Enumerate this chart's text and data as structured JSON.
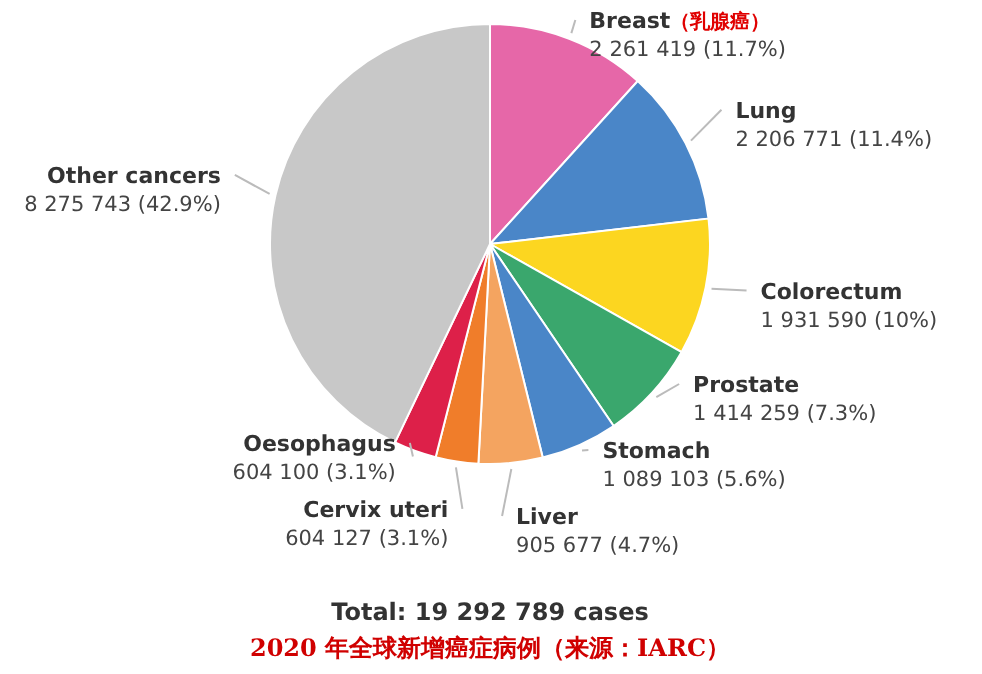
{
  "chart_data": {
    "type": "pie",
    "title": "Total: 19 292 789 cases",
    "subtitle": "2020 年全球新增癌症病例（来源：IARC）",
    "categories": [
      "Breast（乳腺癌）",
      "Lung",
      "Colorectum",
      "Prostate",
      "Stomach",
      "Liver",
      "Cervix uteri",
      "Oesophagus",
      "Other cancers"
    ],
    "values": [
      2261419,
      2206771,
      1931590,
      1414259,
      1089103,
      905677,
      604127,
      604100,
      8275743
    ],
    "value_labels": [
      "2 261 419 (11.7%)",
      "2 206 771 (11.4%)",
      "1 931 590 (10%)",
      "1 414 259 (7.3%)",
      "1 089 103 (5.6%)",
      "905 677 (4.7%)",
      "604 127 (3.1%)",
      "604 100 (3.1%)",
      "8 275 743 (42.9%)"
    ],
    "colors": [
      "#e667a8",
      "#4a86c8",
      "#fcd620",
      "#3aa76d",
      "#4a86c8",
      "#f4a460",
      "#f07d2a",
      "#dd2049",
      "#c8c8c8"
    ]
  }
}
